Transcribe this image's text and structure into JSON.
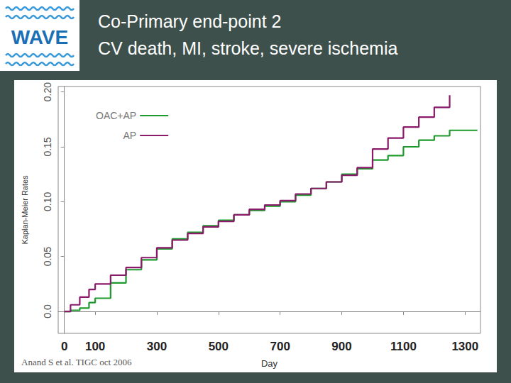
{
  "chart_data": {
    "type": "line",
    "logo": "WAVE",
    "title": "Co-Primary end-point 2",
    "subtitle": "CV death, MI, stroke, severe ischemia",
    "x_label": "Day",
    "y_label": "Kaplan-Meier Rates",
    "source": "Anand S et al. TIGC oct 2006",
    "x": [
      0,
      20,
      50,
      80,
      100,
      150,
      200,
      250,
      300,
      350,
      400,
      450,
      500,
      550,
      600,
      650,
      700,
      750,
      800,
      850,
      900,
      950,
      1000,
      1050,
      1100,
      1150,
      1200,
      1250,
      1300,
      1340
    ],
    "series": [
      {
        "name": "OAC+AP",
        "color": "#1f9a2e",
        "line_style": "step",
        "values": [
          0,
          0.001,
          0.003,
          0.008,
          0.012,
          0.026,
          0.038,
          0.047,
          0.057,
          0.066,
          0.072,
          0.078,
          0.083,
          0.088,
          0.092,
          0.096,
          0.1,
          0.106,
          0.112,
          0.118,
          0.125,
          0.13,
          0.138,
          0.142,
          0.15,
          0.156,
          0.16,
          0.165,
          0.165,
          0.165
        ]
      },
      {
        "name": "AP",
        "color": "#8b1a6b",
        "line_style": "step",
        "values": [
          0,
          0.006,
          0.013,
          0.02,
          0.025,
          0.033,
          0.04,
          0.049,
          0.058,
          0.065,
          0.071,
          0.077,
          0.082,
          0.088,
          0.093,
          0.097,
          0.101,
          0.107,
          0.112,
          0.118,
          0.124,
          0.131,
          0.148,
          0.158,
          0.168,
          0.177,
          0.186,
          0.197,
          null,
          null
        ]
      }
    ],
    "xlim": [
      -20,
      1350
    ],
    "xticks": [
      0,
      100,
      300,
      500,
      700,
      900,
      1100,
      1300
    ],
    "ylim": [
      -0.02,
      0.205
    ],
    "yticks": [
      {
        "value": 0,
        "label": "0.0"
      },
      0.05,
      {
        "value": 0.1,
        "label": "0.10"
      },
      0.15,
      {
        "value": 0.2,
        "label": "0.20"
      }
    ],
    "grid": false,
    "legend": "upper left"
  }
}
